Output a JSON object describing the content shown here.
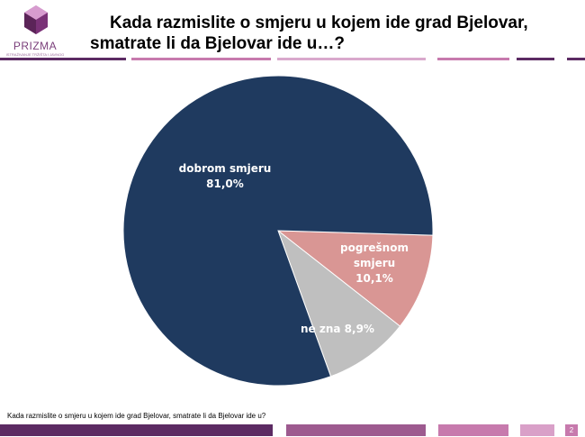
{
  "logo": {
    "name": "PRIZMA",
    "tagline": "ISTRAŽIVANJE TRŽIŠTA I JAVNOG MNIJENJA"
  },
  "title": {
    "line1": "Kada razmislite o smjeru u kojem ide grad Bjelovar,",
    "line2": "smatrate li da Bjelovar ide u…?"
  },
  "colors": {
    "accent_pink": "#c77aad",
    "accent_purple": "#5c2b63",
    "slice_good": "#1f3a5f",
    "slice_wrong": "#d99694",
    "slice_dontknow": "#bfbfbf"
  },
  "chart_data": {
    "type": "pie",
    "slices": [
      {
        "label_lines": [
          "dobrom smjeru",
          "81,0%"
        ],
        "value": 81.0,
        "color": "#1f3a5f",
        "label_color": "#ffffff"
      },
      {
        "label_lines": [
          "pogrešnom",
          "smjeru",
          "10,1%"
        ],
        "value": 10.1,
        "color": "#d99694",
        "label_color": "#ffffff"
      },
      {
        "label_lines": [
          "ne zna 8,9%"
        ],
        "value": 8.9,
        "color": "#bfbfbf",
        "label_color": "#ffffff"
      }
    ]
  },
  "footnote": "Kada razmislite o smjeru u kojem ide grad Bjelovar, smatrate li da Bjelovar ide u?",
  "page_number": "2"
}
